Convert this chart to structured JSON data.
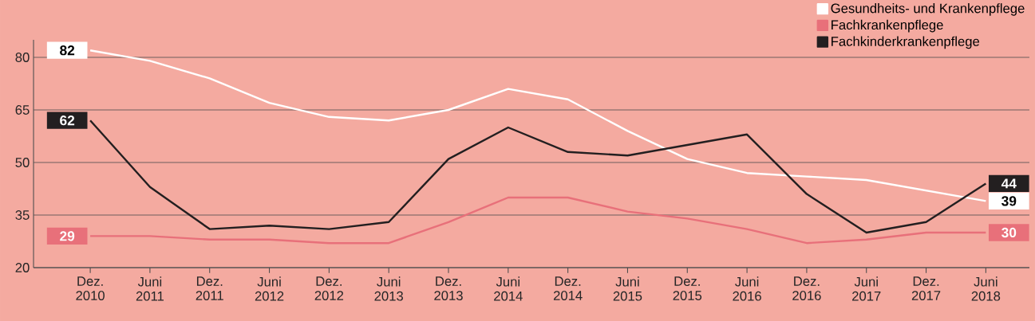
{
  "chart_data": {
    "type": "line",
    "categories": [
      "Dez. 2010",
      "Juni 2011",
      "Dez. 2011",
      "Juni 2012",
      "Dez. 2012",
      "Juni 2013",
      "Dez. 2013",
      "Juni 2014",
      "Dez. 2014",
      "Juni 2015",
      "Dez. 2015",
      "Juni 2016",
      "Dez. 2016",
      "Juni 2017",
      "Dez. 2017",
      "Juni 2018"
    ],
    "series": [
      {
        "name": "Gesundheits- und Krankenpflege",
        "color": "#ffffff",
        "values": [
          82,
          79,
          74,
          67,
          63,
          62,
          65,
          71,
          68,
          59,
          51,
          47,
          46,
          45,
          42,
          39
        ],
        "value_labels": [
          "82",
          null,
          null,
          null,
          null,
          null,
          null,
          null,
          null,
          null,
          null,
          null,
          null,
          null,
          null,
          "39"
        ]
      },
      {
        "name": "Fachkrankenpflege",
        "color": "#e8707a",
        "values": [
          29,
          29,
          28,
          28,
          27,
          27,
          33,
          40,
          40,
          36,
          34,
          31,
          27,
          28,
          30,
          30
        ],
        "value_labels": [
          "29",
          null,
          null,
          null,
          null,
          null,
          null,
          null,
          null,
          null,
          null,
          null,
          null,
          null,
          null,
          "30"
        ]
      },
      {
        "name": "Fachkinderkrankenpflege",
        "color": "#231f20",
        "values": [
          62,
          43,
          31,
          32,
          31,
          33,
          51,
          60,
          53,
          52,
          55,
          58,
          41,
          30,
          33,
          44
        ],
        "value_labels": [
          "62",
          null,
          null,
          null,
          null,
          null,
          null,
          null,
          null,
          null,
          null,
          null,
          null,
          null,
          null,
          "44"
        ]
      }
    ],
    "ylim": [
      20,
      85
    ],
    "yticks": [
      20,
      35,
      50,
      65,
      80
    ],
    "grid": "y",
    "legend": "top right",
    "marker": "none",
    "line_style": "solid"
  }
}
